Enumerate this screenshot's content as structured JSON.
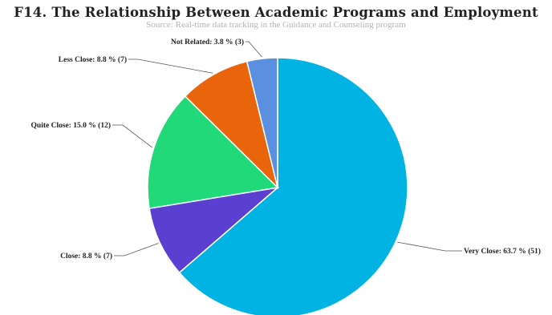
{
  "chart_data": {
    "type": "pie",
    "title": "F14. The Relationship Between Academic Programs and Employment",
    "subtitle": "Source: Real-time data tracking in the Guidance and Counseling program",
    "slices": [
      {
        "name": "Very Close",
        "percent": 63.7,
        "count": 51,
        "label": "Very Close: 63.7 % (51)",
        "color": "#00b3e3"
      },
      {
        "name": "Close",
        "percent": 8.8,
        "count": 7,
        "label": "Close: 8.8 % (7)",
        "color": "#5b3fd1"
      },
      {
        "name": "Quite Close",
        "percent": 15.0,
        "count": 12,
        "label": "Quite Close: 15.0 % (12)",
        "color": "#22d97a"
      },
      {
        "name": "Less Close",
        "percent": 8.8,
        "count": 7,
        "label": "Less Close: 8.8 % (7)",
        "color": "#e8650c"
      },
      {
        "name": "Not Related",
        "percent": 3.8,
        "count": 3,
        "label": "Not Related: 3.8 % (3)",
        "color": "#5b8fe0"
      }
    ],
    "legend": "none"
  }
}
